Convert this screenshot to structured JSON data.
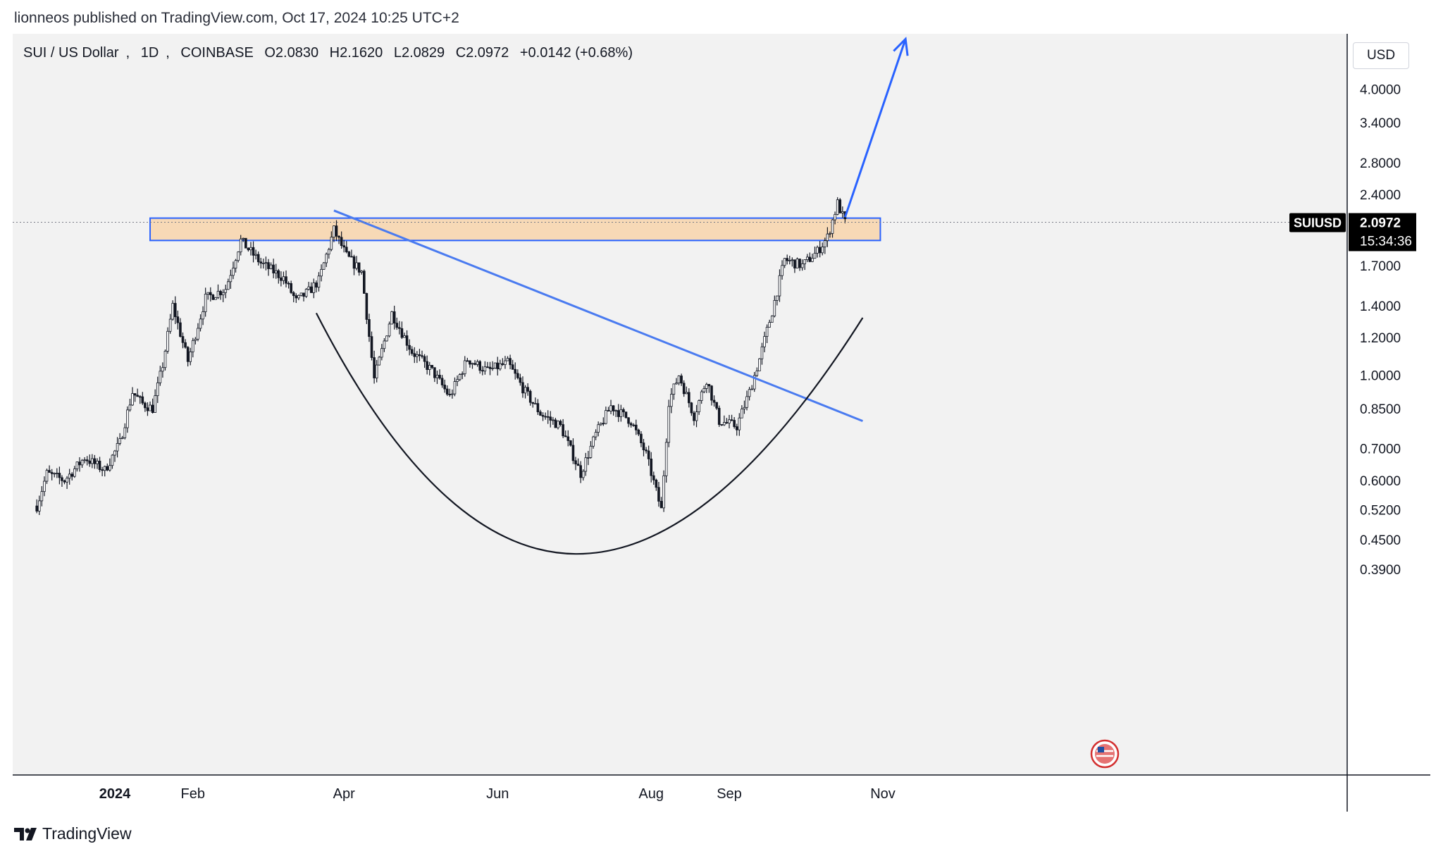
{
  "publisher_line": "lionneos published on TradingView.com, Oct 17, 2024 10:25 UTC+2",
  "currency_button": "USD",
  "footer_brand": "TradingView",
  "colors": {
    "background": "#f2f2f2",
    "candle": "#131722",
    "zone_fill": "#f7d9b6",
    "zone_stroke": "#2962ff",
    "trendline": "#4a7bf0",
    "cup_curve": "#131722",
    "price_tag": "#000000"
  },
  "chart_data": {
    "type": "candlestick",
    "symbol": "SUI / US Dollar",
    "interval": "1D",
    "exchange": "COINBASE",
    "ohlc": {
      "open_label": "O2.0830",
      "high_label": "H2.1620",
      "low_label": "L2.0829",
      "close_label": "C2.0972",
      "change_label": "+0.0142 (+0.68%)"
    },
    "y_scale": "log",
    "y_ticks": [
      "4.0000",
      "3.4000",
      "2.8000",
      "2.4000",
      "1.7000",
      "1.4000",
      "1.2000",
      "1.0000",
      "0.8500",
      "0.7000",
      "0.6000",
      "0.5200",
      "0.4500",
      "0.3900"
    ],
    "x_ticks": [
      "2024",
      "Feb",
      "Apr",
      "Jun",
      "Aug",
      "Sep",
      "Nov"
    ],
    "current_price": {
      "symbol": "SUIUSD",
      "value": "2.0972",
      "countdown": "15:34:36"
    },
    "close_path": [
      {
        "date": "2023-12-01",
        "close": 0.53
      },
      {
        "date": "2023-12-05",
        "close": 0.62
      },
      {
        "date": "2023-12-12",
        "close": 0.6
      },
      {
        "date": "2023-12-20",
        "close": 0.67
      },
      {
        "date": "2023-12-28",
        "close": 0.63
      },
      {
        "date": "2024-01-03",
        "close": 0.72
      },
      {
        "date": "2024-01-08",
        "close": 0.92
      },
      {
        "date": "2024-01-12",
        "close": 0.87
      },
      {
        "date": "2024-01-16",
        "close": 0.85
      },
      {
        "date": "2024-01-20",
        "close": 1.05
      },
      {
        "date": "2024-01-24",
        "close": 1.4
      },
      {
        "date": "2024-01-30",
        "close": 1.07
      },
      {
        "date": "2024-02-06",
        "close": 1.45
      },
      {
        "date": "2024-02-14",
        "close": 1.52
      },
      {
        "date": "2024-02-20",
        "close": 1.92
      },
      {
        "date": "2024-02-28",
        "close": 1.72
      },
      {
        "date": "2024-03-08",
        "close": 1.6
      },
      {
        "date": "2024-03-13",
        "close": 1.43
      },
      {
        "date": "2024-03-18",
        "close": 1.5
      },
      {
        "date": "2024-03-22",
        "close": 1.58
      },
      {
        "date": "2024-03-28",
        "close": 2.02
      },
      {
        "date": "2024-04-02",
        "close": 1.78
      },
      {
        "date": "2024-04-08",
        "close": 1.65
      },
      {
        "date": "2024-04-13",
        "close": 0.98
      },
      {
        "date": "2024-04-20",
        "close": 1.35
      },
      {
        "date": "2024-04-28",
        "close": 1.12
      },
      {
        "date": "2024-05-06",
        "close": 1.02
      },
      {
        "date": "2024-05-13",
        "close": 0.9
      },
      {
        "date": "2024-05-20",
        "close": 1.08
      },
      {
        "date": "2024-05-28",
        "close": 1.02
      },
      {
        "date": "2024-06-05",
        "close": 1.06
      },
      {
        "date": "2024-06-12",
        "close": 0.92
      },
      {
        "date": "2024-06-18",
        "close": 0.83
      },
      {
        "date": "2024-06-26",
        "close": 0.78
      },
      {
        "date": "2024-07-04",
        "close": 0.62
      },
      {
        "date": "2024-07-10",
        "close": 0.75
      },
      {
        "date": "2024-07-16",
        "close": 0.86
      },
      {
        "date": "2024-07-24",
        "close": 0.8
      },
      {
        "date": "2024-07-30",
        "close": 0.68
      },
      {
        "date": "2024-08-05",
        "close": 0.52
      },
      {
        "date": "2024-08-08",
        "close": 0.88
      },
      {
        "date": "2024-08-12",
        "close": 1.0
      },
      {
        "date": "2024-08-18",
        "close": 0.82
      },
      {
        "date": "2024-08-23",
        "close": 0.98
      },
      {
        "date": "2024-08-28",
        "close": 0.8
      },
      {
        "date": "2024-09-04",
        "close": 0.78
      },
      {
        "date": "2024-09-09",
        "close": 0.92
      },
      {
        "date": "2024-09-13",
        "close": 1.08
      },
      {
        "date": "2024-09-18",
        "close": 1.36
      },
      {
        "date": "2024-09-23",
        "close": 1.75
      },
      {
        "date": "2024-09-30",
        "close": 1.7
      },
      {
        "date": "2024-10-06",
        "close": 1.82
      },
      {
        "date": "2024-10-10",
        "close": 1.95
      },
      {
        "date": "2024-10-14",
        "close": 2.3
      },
      {
        "date": "2024-10-17",
        "close": 2.0972
      }
    ],
    "annotations": {
      "resistance_zone": {
        "low": 1.92,
        "high": 2.14,
        "start": "2024-01-15",
        "end": "2024-10-31"
      },
      "descending_trendline": {
        "start": {
          "date": "2024-03-28",
          "price": 2.22
        },
        "end": {
          "date": "2024-10-24",
          "price": 0.8
        }
      },
      "cup_curve": {
        "start": {
          "date": "2024-03-21",
          "price": 1.35
        },
        "bottom": {
          "date": "2024-07-02",
          "price": 0.42
        },
        "end": {
          "date": "2024-10-24",
          "price": 1.32
        }
      },
      "projection_arrow": {
        "start": {
          "date": "2024-10-17",
          "price": 2.15
        },
        "end": {
          "date": "2024-11-10",
          "price": 5.1
        }
      }
    }
  }
}
